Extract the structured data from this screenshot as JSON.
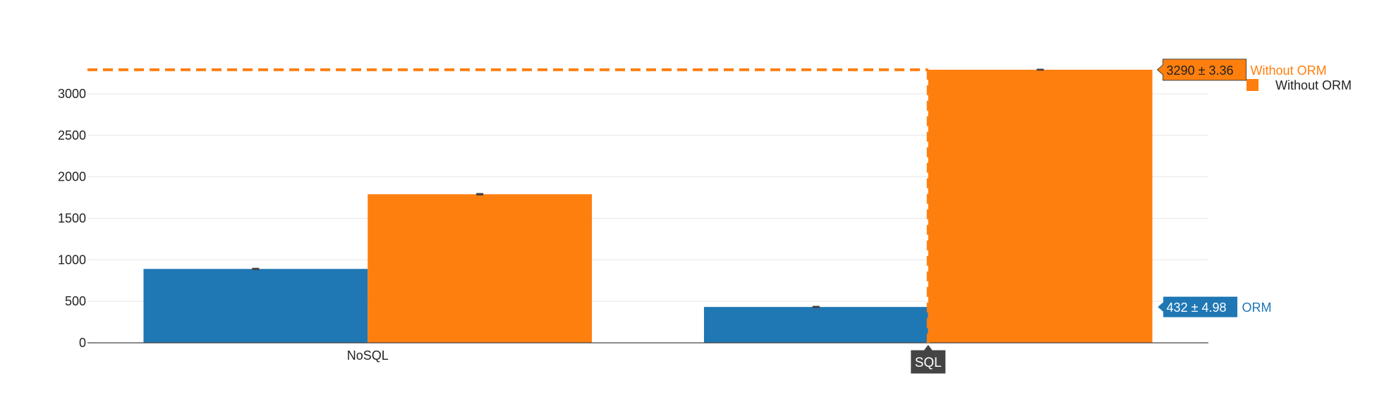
{
  "chart_data": {
    "type": "bar",
    "title": "",
    "xlabel": "",
    "ylabel": "",
    "ylim": [
      0,
      3450
    ],
    "y_ticks": [
      0,
      500,
      1000,
      1500,
      2000,
      2500,
      3000
    ],
    "y_tick_labels": [
      "0",
      "500",
      "1000",
      "1500",
      "2000",
      "2500",
      "3000"
    ],
    "categories": [
      "NoSQL",
      "SQL"
    ],
    "series": [
      {
        "name": "ORM",
        "color": "#1f77b4",
        "values": [
          890,
          432
        ],
        "errors": [
          5,
          4.98
        ]
      },
      {
        "name": "Without ORM",
        "color": "#ff7f0e",
        "values": [
          1790,
          3290
        ],
        "errors": [
          6,
          3.36
        ]
      }
    ],
    "grid": true,
    "legend_position": "top-right",
    "hover": {
      "category_label": "SQL",
      "series_labels": [
        {
          "series": "Without ORM",
          "value_text": "3290 ± 3.36",
          "name_text": "Without ORM"
        },
        {
          "series": "ORM",
          "value_text": "432 ± 4.98",
          "name_text": "ORM"
        }
      ]
    }
  },
  "legend": {
    "items": [
      {
        "label": "Without ORM",
        "color": "#ff7f0e"
      }
    ]
  }
}
